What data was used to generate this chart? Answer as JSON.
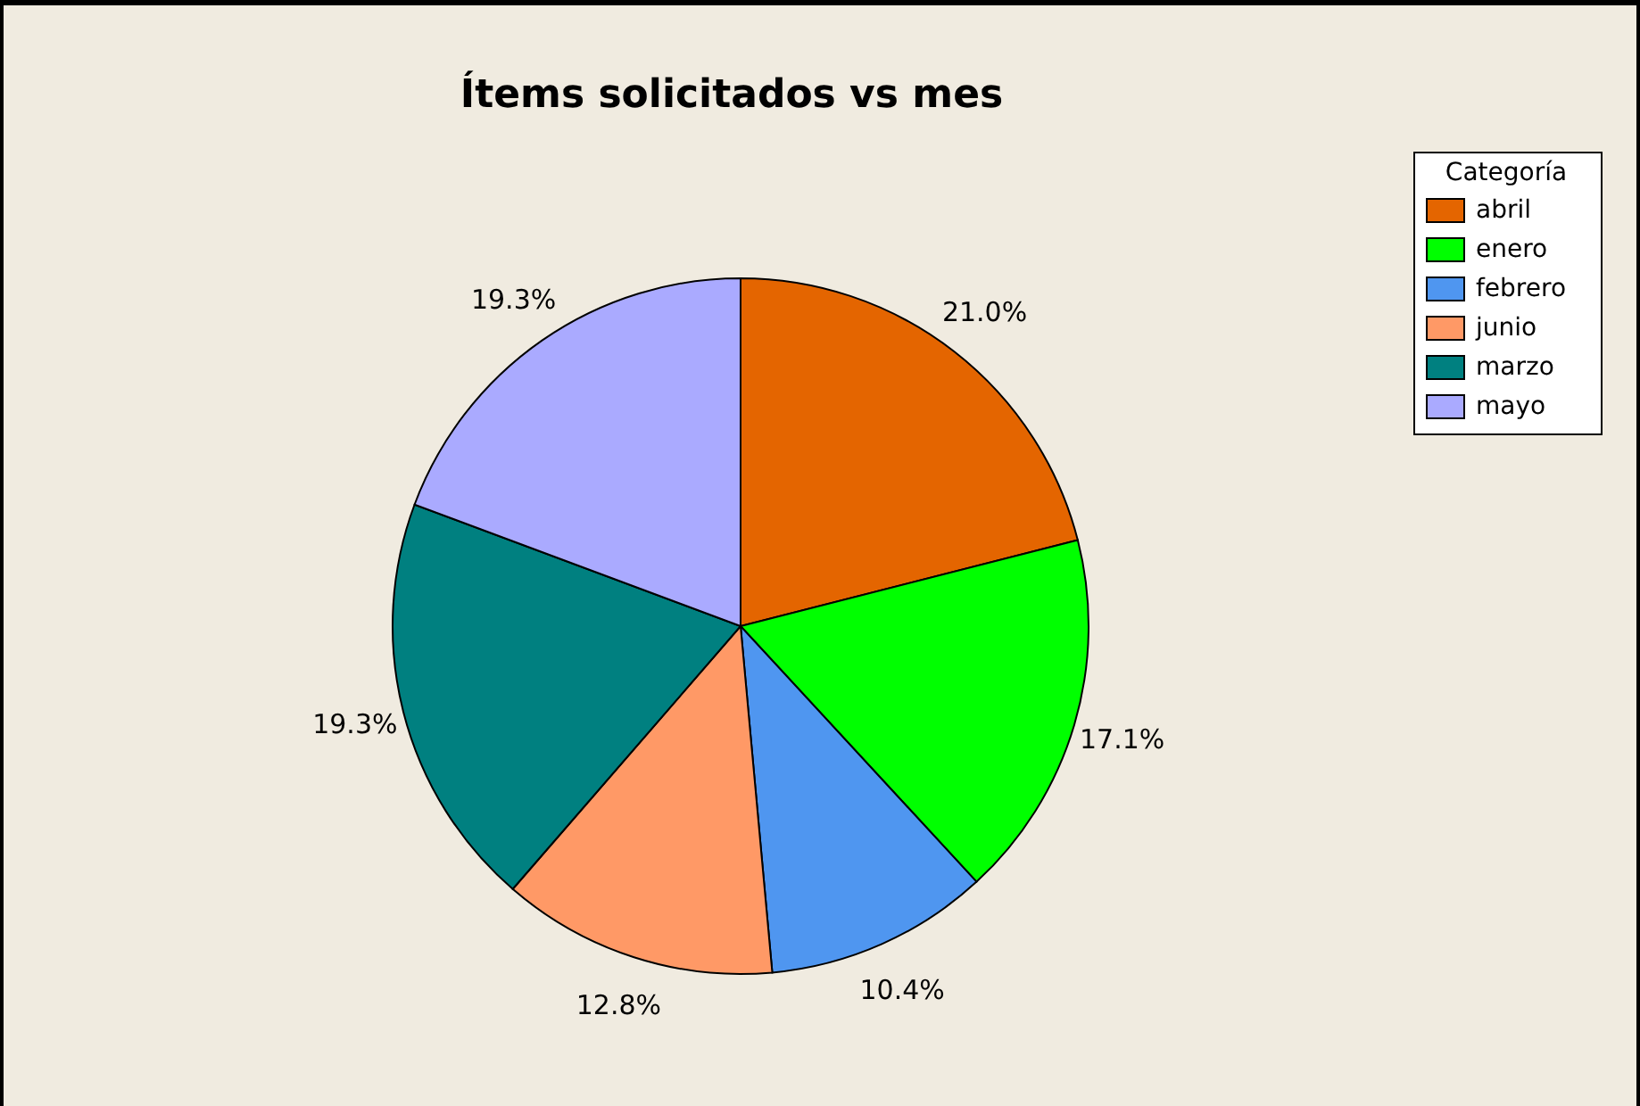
{
  "chart_data": {
    "type": "pie",
    "title": "Ítems solicitados vs mes",
    "legend_title": "Categoría",
    "legend": "top right",
    "categories": [
      "abril",
      "enero",
      "febrero",
      "junio",
      "marzo",
      "mayo"
    ],
    "values": [
      21.0,
      17.1,
      10.4,
      12.8,
      19.3,
      19.3
    ],
    "colors": [
      "#e46500",
      "#00ff00",
      "#4f96f0",
      "#ff9966",
      "#008080",
      "#aaaaff"
    ],
    "value_labels": [
      "21.0%",
      "17.1%",
      "10.4%",
      "12.8%",
      "19.3%",
      "19.3%"
    ]
  }
}
